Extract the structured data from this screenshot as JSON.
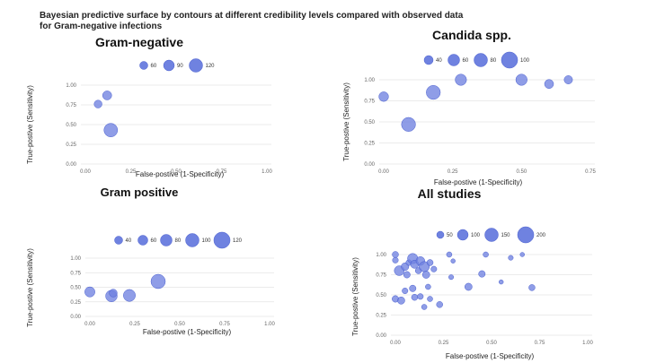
{
  "figure": {
    "title_line1": "Bayesian predictive surface by contours at different credibility levels compared with observed data",
    "title_line2": "for Gram-negative infections"
  },
  "style": {
    "bubble_color": "#6f82e0",
    "bubble_stroke": "#4a5fcf",
    "grid_color": "#e4e4e4"
  },
  "chart_data": [
    {
      "type": "scatter",
      "title": "Gram-negative",
      "xlabel": "False-postive (1-Specificity)",
      "ylabel": "True-postive (Sensitivity)",
      "xlim": [
        0,
        1
      ],
      "ylim": [
        0,
        1
      ],
      "x_ticks": [
        "0.00",
        "0.25",
        "0.50",
        "0.75",
        "1.00"
      ],
      "y_ticks": [
        "0.00",
        "0.25",
        "0.50",
        "0.75",
        "1.00"
      ],
      "grid": "horizontal",
      "legend_sizes": [
        60,
        90,
        120
      ],
      "points": [
        {
          "x": 0.07,
          "y": 0.76,
          "size": 30
        },
        {
          "x": 0.12,
          "y": 0.87,
          "size": 40
        },
        {
          "x": 0.14,
          "y": 0.43,
          "size": 90
        }
      ]
    },
    {
      "type": "scatter",
      "title": "Candida spp.",
      "xlabel": "False-postive (1-Specificity)",
      "ylabel": "True-postive (Sensitivity)",
      "xlim": [
        0,
        1
      ],
      "ylim": [
        0,
        1
      ],
      "x_ticks": [
        "0.00",
        "0.25",
        "0.50",
        "0.75"
      ],
      "y_ticks": [
        "0.00",
        "0.25",
        "0.50",
        "0.75",
        "1.00"
      ],
      "grid": "horizontal",
      "legend_sizes": [
        40,
        60,
        80,
        100
      ],
      "points": [
        {
          "x": 0.0,
          "y": 0.8,
          "size": 40
        },
        {
          "x": 0.09,
          "y": 0.47,
          "size": 85
        },
        {
          "x": 0.18,
          "y": 0.85,
          "size": 85
        },
        {
          "x": 0.28,
          "y": 1.0,
          "size": 55
        },
        {
          "x": 0.5,
          "y": 1.0,
          "size": 55
        },
        {
          "x": 0.6,
          "y": 0.95,
          "size": 35
        },
        {
          "x": 0.67,
          "y": 1.0,
          "size": 30
        }
      ]
    },
    {
      "type": "scatter",
      "title": "Gram positive",
      "xlabel": "False-postive (1-Specificity)",
      "ylabel": "True-postive (Sensitivity)",
      "xlim": [
        0,
        1
      ],
      "ylim": [
        0,
        1
      ],
      "x_ticks": [
        "0.00",
        "0.25",
        "0.50",
        "0.75",
        "1.00"
      ],
      "y_ticks": [
        "0.00",
        "0.25",
        "0.50",
        "0.75",
        "1.00"
      ],
      "grid": "horizontal",
      "legend_sizes": [
        40,
        60,
        80,
        100,
        120
      ],
      "points": [
        {
          "x": 0.0,
          "y": 0.42,
          "size": 50
        },
        {
          "x": 0.12,
          "y": 0.35,
          "size": 65
        },
        {
          "x": 0.13,
          "y": 0.4,
          "size": 30
        },
        {
          "x": 0.22,
          "y": 0.36,
          "size": 70
        },
        {
          "x": 0.38,
          "y": 0.6,
          "size": 100
        }
      ]
    },
    {
      "type": "scatter",
      "title": "All studies",
      "xlabel": "False-postive (1-Specificity)",
      "ylabel": "True-postive (Sensitivity)",
      "xlim": [
        0,
        1
      ],
      "ylim": [
        0,
        1
      ],
      "x_ticks": [
        "0.00",
        "0.25",
        "0.50",
        "0.75",
        "1.00"
      ],
      "y_ticks": [
        "0.00",
        "0.25",
        "0.50",
        "0.75",
        "1.00"
      ],
      "grid": "horizontal",
      "legend_sizes": [
        50,
        100,
        150,
        200
      ],
      "points": [
        {
          "x": 0.0,
          "y": 1.0,
          "size": 40
        },
        {
          "x": 0.0,
          "y": 0.93,
          "size": 35
        },
        {
          "x": 0.02,
          "y": 0.8,
          "size": 100
        },
        {
          "x": 0.05,
          "y": 0.85,
          "size": 60
        },
        {
          "x": 0.07,
          "y": 0.9,
          "size": 35
        },
        {
          "x": 0.06,
          "y": 0.75,
          "size": 45
        },
        {
          "x": 0.09,
          "y": 0.95,
          "size": 110
        },
        {
          "x": 0.1,
          "y": 0.88,
          "size": 70
        },
        {
          "x": 0.12,
          "y": 0.8,
          "size": 40
        },
        {
          "x": 0.13,
          "y": 0.92,
          "size": 80
        },
        {
          "x": 0.15,
          "y": 0.85,
          "size": 110
        },
        {
          "x": 0.16,
          "y": 0.75,
          "size": 55
        },
        {
          "x": 0.18,
          "y": 0.9,
          "size": 40
        },
        {
          "x": 0.2,
          "y": 0.82,
          "size": 35
        },
        {
          "x": 0.17,
          "y": 0.6,
          "size": 30
        },
        {
          "x": 0.05,
          "y": 0.55,
          "size": 35
        },
        {
          "x": 0.0,
          "y": 0.45,
          "size": 45
        },
        {
          "x": 0.03,
          "y": 0.43,
          "size": 55
        },
        {
          "x": 0.1,
          "y": 0.47,
          "size": 40
        },
        {
          "x": 0.09,
          "y": 0.58,
          "size": 45
        },
        {
          "x": 0.13,
          "y": 0.48,
          "size": 35
        },
        {
          "x": 0.15,
          "y": 0.35,
          "size": 30
        },
        {
          "x": 0.18,
          "y": 0.45,
          "size": 30
        },
        {
          "x": 0.23,
          "y": 0.38,
          "size": 40
        },
        {
          "x": 0.28,
          "y": 1.0,
          "size": 30
        },
        {
          "x": 0.3,
          "y": 0.92,
          "size": 20
        },
        {
          "x": 0.29,
          "y": 0.72,
          "size": 25
        },
        {
          "x": 0.38,
          "y": 0.6,
          "size": 55
        },
        {
          "x": 0.45,
          "y": 0.76,
          "size": 45
        },
        {
          "x": 0.47,
          "y": 1.0,
          "size": 30
        },
        {
          "x": 0.55,
          "y": 0.66,
          "size": 20
        },
        {
          "x": 0.6,
          "y": 0.96,
          "size": 25
        },
        {
          "x": 0.66,
          "y": 1.0,
          "size": 20
        },
        {
          "x": 0.71,
          "y": 0.59,
          "size": 40
        }
      ]
    }
  ]
}
